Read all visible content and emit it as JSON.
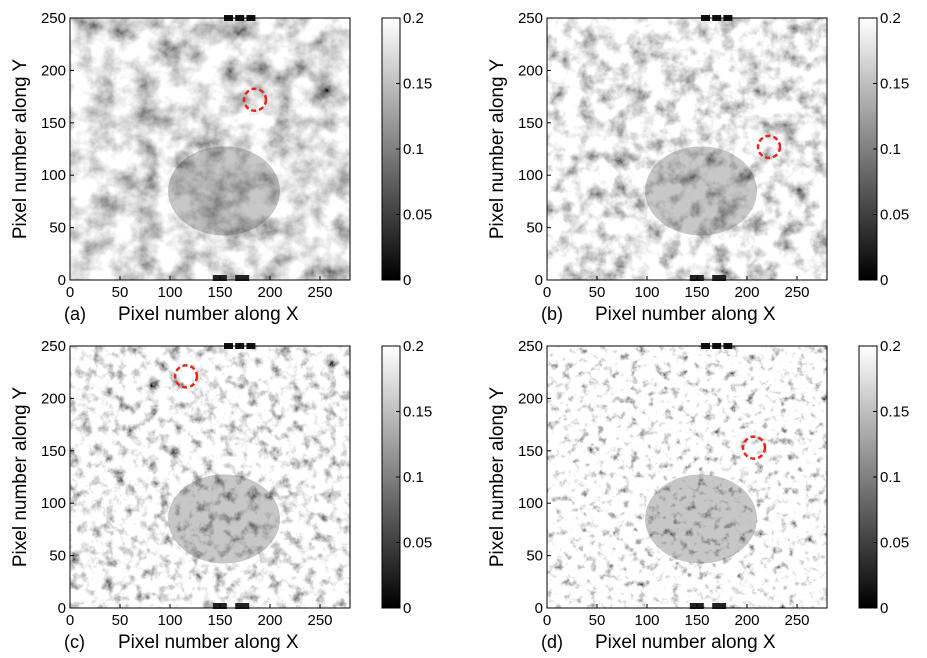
{
  "chart_data": [
    {
      "type": "heatmap",
      "panel_label": "(a)",
      "xlabel": "Pixel number along X",
      "ylabel": "Pixel number along Y",
      "xlim": [
        0,
        280
      ],
      "ylim": [
        0,
        250
      ],
      "xticks": [
        0,
        50,
        100,
        150,
        200,
        250
      ],
      "yticks": [
        0,
        50,
        100,
        150,
        200,
        250
      ],
      "colorbar": {
        "min": 0,
        "max": 0.2,
        "ticks": [
          "0",
          "0.05",
          "0.1",
          "0.15",
          "0.2"
        ],
        "colormap": "gray"
      },
      "marker": {
        "x": 185,
        "y": 172,
        "color": "#e8251d",
        "style": "dashed-circle"
      }
    },
    {
      "type": "heatmap",
      "panel_label": "(b)",
      "xlabel": "Pixel number along X",
      "ylabel": "Pixel number along Y",
      "xlim": [
        0,
        280
      ],
      "ylim": [
        0,
        250
      ],
      "xticks": [
        0,
        50,
        100,
        150,
        200,
        250
      ],
      "yticks": [
        0,
        50,
        100,
        150,
        200,
        250
      ],
      "colorbar": {
        "min": 0,
        "max": 0.2,
        "ticks": [
          "0",
          "0.05",
          "0.1",
          "0.15",
          "0.2"
        ],
        "colormap": "gray"
      },
      "marker": {
        "x": 222,
        "y": 127,
        "color": "#e8251d",
        "style": "dashed-circle"
      }
    },
    {
      "type": "heatmap",
      "panel_label": "(c)",
      "xlabel": "Pixel number along X",
      "ylabel": "Pixel number along Y",
      "xlim": [
        0,
        280
      ],
      "ylim": [
        0,
        250
      ],
      "xticks": [
        0,
        50,
        100,
        150,
        200,
        250
      ],
      "yticks": [
        0,
        50,
        100,
        150,
        200,
        250
      ],
      "colorbar": {
        "min": 0,
        "max": 0.2,
        "ticks": [
          "0",
          "0.05",
          "0.1",
          "0.15",
          "0.2"
        ],
        "colormap": "gray"
      },
      "marker": {
        "x": 116,
        "y": 221,
        "color": "#e8251d",
        "style": "dashed-circle"
      }
    },
    {
      "type": "heatmap",
      "panel_label": "(d)",
      "xlabel": "Pixel number along X",
      "ylabel": "Pixel number along Y",
      "xlim": [
        0,
        280
      ],
      "ylim": [
        0,
        250
      ],
      "xticks": [
        0,
        50,
        100,
        150,
        200,
        250
      ],
      "yticks": [
        0,
        50,
        100,
        150,
        200,
        250
      ],
      "colorbar": {
        "min": 0,
        "max": 0.2,
        "ticks": [
          "0",
          "0.05",
          "0.1",
          "0.15",
          "0.2"
        ],
        "colormap": "gray"
      },
      "marker": {
        "x": 207,
        "y": 153,
        "color": "#e8251d",
        "style": "dashed-circle"
      }
    }
  ]
}
